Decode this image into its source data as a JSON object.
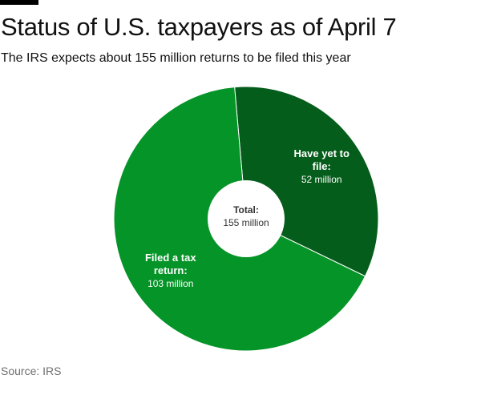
{
  "title": "Status of U.S. taxpayers as of April 7",
  "subtitle": "The IRS expects about 155 million returns to be filed this year",
  "source": "Source: IRS",
  "colors": {
    "filed": "#059427",
    "yet_to_file": "#055d1b",
    "separator": "#ffffff"
  },
  "chart_data": {
    "type": "pie",
    "donut": true,
    "center_label": {
      "title": "Total:",
      "value": "155 million"
    },
    "slices": [
      {
        "name": "Have yet to file",
        "value": 52,
        "label_lines": [
          "Have yet to",
          "file:"
        ],
        "value_label": "52 million",
        "color": "#055d1b"
      },
      {
        "name": "Filed a tax return",
        "value": 103,
        "label_lines": [
          "Filed a tax",
          "return:"
        ],
        "value_label": "103 million",
        "color": "#059427"
      }
    ],
    "total": 155,
    "units": "million"
  }
}
